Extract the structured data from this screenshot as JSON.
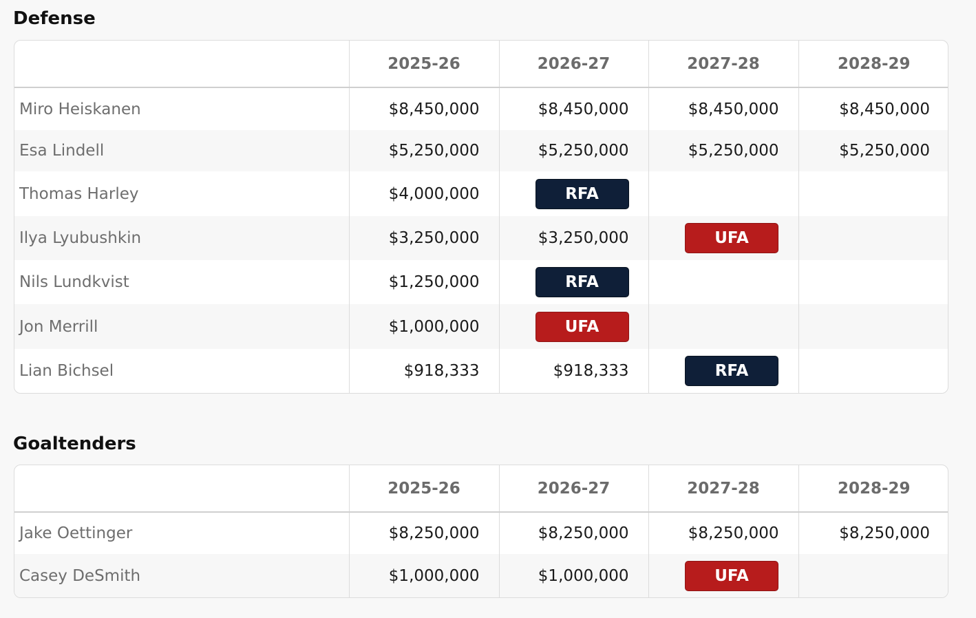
{
  "colors": {
    "rfa": "#0f1f38",
    "ufa": "#b71c1c"
  },
  "defense": {
    "title": "Defense",
    "seasons": [
      "2025-26",
      "2026-27",
      "2027-28",
      "2028-29"
    ],
    "rows": [
      {
        "player": "Miro Heiskanen",
        "cells": [
          "$8,450,000",
          "$8,450,000",
          "$8,450,000",
          "$8,450,000"
        ]
      },
      {
        "player": "Esa Lindell",
        "cells": [
          "$5,250,000",
          "$5,250,000",
          "$5,250,000",
          "$5,250,000"
        ]
      },
      {
        "player": "Thomas Harley",
        "cells": [
          "$4,000,000",
          "RFA",
          "",
          ""
        ]
      },
      {
        "player": "Ilya Lyubushkin",
        "cells": [
          "$3,250,000",
          "$3,250,000",
          "UFA",
          ""
        ]
      },
      {
        "player": "Nils Lundkvist",
        "cells": [
          "$1,250,000",
          "RFA",
          "",
          ""
        ]
      },
      {
        "player": "Jon Merrill",
        "cells": [
          "$1,000,000",
          "UFA",
          "",
          ""
        ]
      },
      {
        "player": "Lian Bichsel",
        "cells": [
          "$918,333",
          "$918,333",
          "RFA",
          ""
        ]
      }
    ]
  },
  "goaltenders": {
    "title": "Goaltenders",
    "seasons": [
      "2025-26",
      "2026-27",
      "2027-28",
      "2028-29"
    ],
    "rows": [
      {
        "player": "Jake Oettinger",
        "cells": [
          "$8,250,000",
          "$8,250,000",
          "$8,250,000",
          "$8,250,000"
        ]
      },
      {
        "player": "Casey DeSmith",
        "cells": [
          "$1,000,000",
          "$1,000,000",
          "UFA",
          ""
        ]
      }
    ]
  }
}
